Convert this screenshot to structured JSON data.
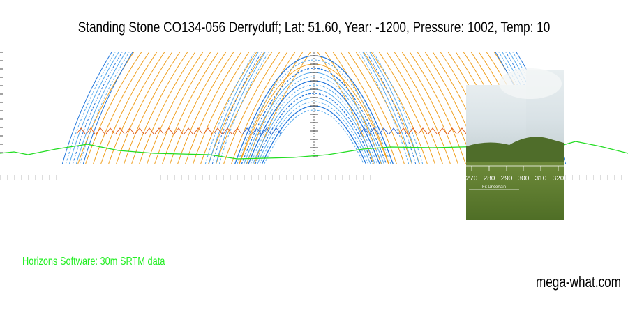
{
  "header": {
    "title": "Standing Stone CO134-056 Derryduff; Lat: 51.60, Year: -1200, Pressure: 1002, Temp: 10"
  },
  "photo": {
    "scale_labels": [
      "270",
      "280",
      "290",
      "300",
      "310",
      "320"
    ],
    "note": "Fit Uncertain"
  },
  "footer": {
    "credit": "Horizons Software: 30m SRTM data",
    "site": "mega-what.com"
  }
}
